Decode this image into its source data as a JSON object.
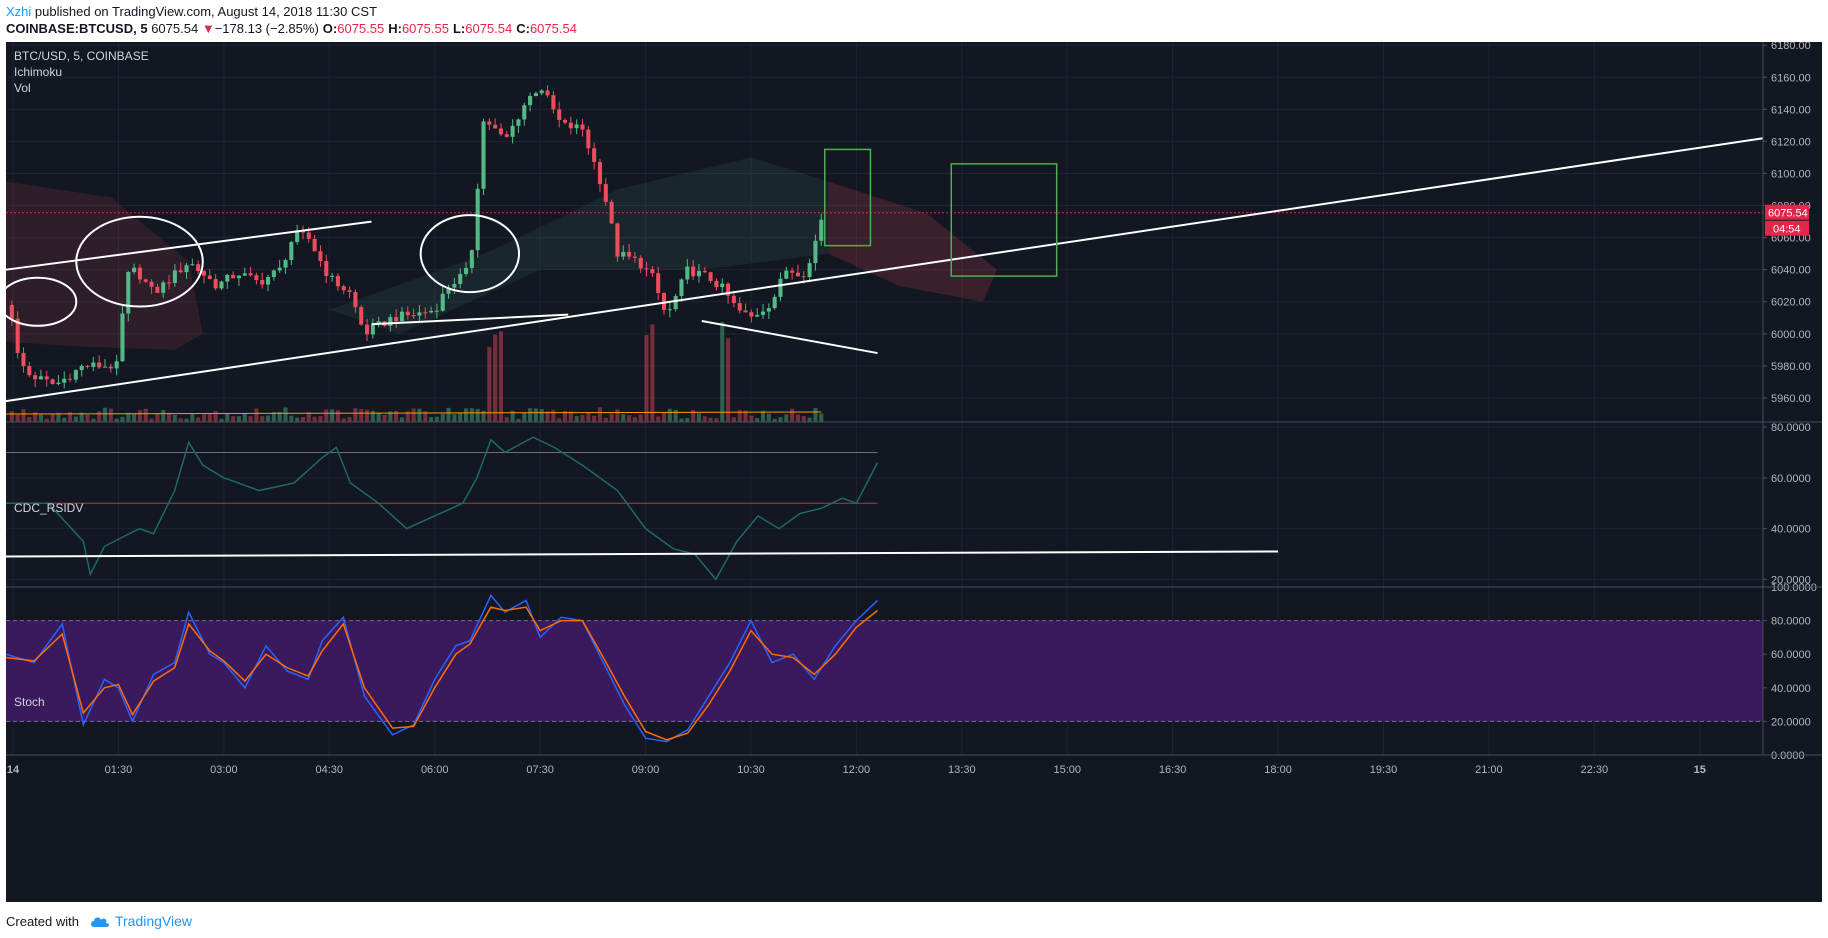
{
  "header": {
    "author": "Xzhi",
    "published_text": "published on TradingView.com, August 14, 2018 11:30 CST",
    "symbol": "COINBASE:BTCUSD, 5",
    "last_price": "6075.54",
    "change_arrow": "▼",
    "change": "−178.13 (−2.85%)",
    "o_label": "O:",
    "o_value": "6075.55",
    "h_label": "H:",
    "h_value": "6075.55",
    "l_label": "L:",
    "l_value": "6075.54",
    "c_label": "C:",
    "c_value": "6075.54"
  },
  "footer": {
    "created_with": "Created with",
    "brand": "TradingView"
  },
  "colors": {
    "background": "#131722",
    "bull": "#53b987",
    "bear": "#eb4d5c",
    "trendline": "#ffffff",
    "box": "#4caf50",
    "rsi_line": "#1d6b66",
    "stoch_k": "#2962ff",
    "stoch_d": "#ff6d00",
    "stoch_band": "#3a1a5c",
    "price_tag": "#e2274a"
  },
  "chart_data": [
    {
      "type": "candlestick",
      "panel": "price",
      "labels": [
        "BTC/USD, 5, COINBASE",
        "Ichimoku",
        "Vol"
      ],
      "ylim": [
        5945,
        6182
      ],
      "y_ticks": [
        "6180.00",
        "6160.00",
        "6140.00",
        "6120.00",
        "6100.00",
        "6080.00",
        "6060.00",
        "6040.00",
        "6020.00",
        "6000.00",
        "5980.00",
        "5960.00"
      ],
      "last_price_tag": "6075.54",
      "countdown_tag": "04:54",
      "x_ticks": [
        "14",
        "01:30",
        "03:00",
        "04:30",
        "06:00",
        "07:30",
        "09:00",
        "10:30",
        "12:00",
        "13:30",
        "15:00",
        "16:30",
        "18:00",
        "19:30",
        "21:00",
        "22:30",
        "15"
      ],
      "time_range_hours": [
        -0.1,
        24.9
      ],
      "candles_anchor_times": [
        0.0,
        1.5,
        3.0,
        4.5,
        6.0,
        7.5,
        9.0,
        10.5,
        11.5
      ],
      "candle_count": 140,
      "candle_interval_minutes": 5,
      "price_path": [
        [
          -0.1,
          6018
        ],
        [
          0.0,
          6010
        ],
        [
          0.05,
          5988
        ],
        [
          0.2,
          5975
        ],
        [
          0.6,
          5968
        ],
        [
          1.0,
          5980
        ],
        [
          1.5,
          5980
        ],
        [
          1.6,
          6035
        ],
        [
          1.75,
          6040
        ],
        [
          2.0,
          6025
        ],
        [
          2.5,
          6045
        ],
        [
          2.9,
          6030
        ],
        [
          3.2,
          6038
        ],
        [
          3.5,
          6032
        ],
        [
          3.8,
          6040
        ],
        [
          4.0,
          6062
        ],
        [
          4.2,
          6060
        ],
        [
          4.5,
          6035
        ],
        [
          4.8,
          6025
        ],
        [
          5.0,
          6000
        ],
        [
          5.4,
          6010
        ],
        [
          5.7,
          6012
        ],
        [
          6.0,
          6015
        ],
        [
          6.2,
          6030
        ],
        [
          6.5,
          6040
        ],
        [
          6.7,
          6135
        ],
        [
          7.0,
          6120
        ],
        [
          7.3,
          6145
        ],
        [
          7.5,
          6155
        ],
        [
          7.8,
          6130
        ],
        [
          8.1,
          6128
        ],
        [
          8.4,
          6090
        ],
        [
          8.6,
          6050
        ],
        [
          8.9,
          6045
        ],
        [
          9.1,
          6035
        ],
        [
          9.3,
          6010
        ],
        [
          9.6,
          6040
        ],
        [
          9.9,
          6035
        ],
        [
          10.1,
          6028
        ],
        [
          10.3,
          6015
        ],
        [
          10.5,
          6010
        ],
        [
          10.8,
          6020
        ],
        [
          11.0,
          6040
        ],
        [
          11.3,
          6038
        ],
        [
          11.5,
          6072
        ]
      ],
      "volume_spikes_hours": [
        6.8,
        6.9,
        9.05,
        10.15
      ],
      "annotations": {
        "trendlines": [
          {
            "from": [
              -0.1,
              6040
            ],
            "to": [
              5.1,
              6070
            ]
          },
          {
            "from": [
              -0.1,
              5958
            ],
            "to": [
              24.9,
              6122
            ]
          },
          {
            "from": [
              5.1,
              6006
            ],
            "to": [
              7.9,
              6012
            ]
          },
          {
            "from": [
              9.8,
              6008
            ],
            "to": [
              12.3,
              5988
            ]
          }
        ],
        "rectangles": [
          {
            "t1": [
              11.55,
              6115
            ],
            "t2": [
              12.2,
              6055
            ]
          },
          {
            "t1": [
              13.35,
              6106
            ],
            "t2": [
              14.85,
              6036
            ]
          }
        ],
        "circles": [
          {
            "center": [
              0.35,
              6020
            ],
            "r_hours": 0.55,
            "r_price": 15
          },
          {
            "center": [
              1.8,
              6045
            ],
            "r_hours": 0.9,
            "r_price": 28
          },
          {
            "center": [
              6.5,
              6050
            ],
            "r_hours": 0.7,
            "r_price": 24
          }
        ],
        "last_price_dashed": 6075.54
      }
    },
    {
      "type": "line",
      "panel": "oscillator",
      "labels": [
        "CDC_RSIDV"
      ],
      "ylim": [
        17,
        82
      ],
      "y_ticks": [
        "80.0000",
        "60.0000",
        "40.0000",
        "20.0000"
      ],
      "levels": [
        70,
        50
      ],
      "series": [
        {
          "points": [
            [
              -0.1,
              50
            ],
            [
              0.5,
              50
            ],
            [
              1.0,
              35
            ],
            [
              1.1,
              22
            ],
            [
              1.3,
              33
            ],
            [
              1.8,
              40
            ],
            [
              2.0,
              38
            ],
            [
              2.3,
              55
            ],
            [
              2.5,
              74
            ],
            [
              2.7,
              65
            ],
            [
              3.0,
              60
            ],
            [
              3.5,
              55
            ],
            [
              4.0,
              58
            ],
            [
              4.4,
              68
            ],
            [
              4.6,
              72
            ],
            [
              4.8,
              58
            ],
            [
              5.2,
              50
            ],
            [
              5.6,
              40
            ],
            [
              6.0,
              45
            ],
            [
              6.4,
              50
            ],
            [
              6.6,
              60
            ],
            [
              6.8,
              75
            ],
            [
              7.0,
              70
            ],
            [
              7.4,
              76
            ],
            [
              7.7,
              72
            ],
            [
              8.1,
              65
            ],
            [
              8.6,
              55
            ],
            [
              9.0,
              40
            ],
            [
              9.4,
              32
            ],
            [
              9.7,
              30
            ],
            [
              10.0,
              20
            ],
            [
              10.3,
              35
            ],
            [
              10.6,
              45
            ],
            [
              10.9,
              40
            ],
            [
              11.2,
              46
            ],
            [
              11.5,
              48
            ],
            [
              11.8,
              52
            ],
            [
              12.0,
              50
            ],
            [
              12.3,
              66
            ]
          ]
        }
      ],
      "trendline": {
        "from": [
          -0.1,
          29
        ],
        "to": [
          18.0,
          31
        ]
      }
    },
    {
      "type": "line",
      "panel": "oscillator",
      "labels": [
        "Stoch"
      ],
      "ylim": [
        0,
        100
      ],
      "y_ticks": [
        "100.0000",
        "80.0000",
        "60.0000",
        "40.0000",
        "20.0000",
        "0.0000"
      ],
      "band": [
        20,
        80
      ],
      "series": [
        {
          "name": "%K",
          "points": [
            [
              -0.1,
              60
            ],
            [
              0.3,
              55
            ],
            [
              0.7,
              78
            ],
            [
              1.0,
              18
            ],
            [
              1.3,
              45
            ],
            [
              1.5,
              40
            ],
            [
              1.7,
              20
            ],
            [
              2.0,
              48
            ],
            [
              2.3,
              55
            ],
            [
              2.5,
              85
            ],
            [
              2.8,
              60
            ],
            [
              3.0,
              55
            ],
            [
              3.3,
              40
            ],
            [
              3.6,
              65
            ],
            [
              3.9,
              50
            ],
            [
              4.2,
              45
            ],
            [
              4.4,
              68
            ],
            [
              4.7,
              82
            ],
            [
              5.0,
              35
            ],
            [
              5.4,
              12
            ],
            [
              5.7,
              18
            ],
            [
              6.0,
              45
            ],
            [
              6.3,
              65
            ],
            [
              6.5,
              68
            ],
            [
              6.8,
              95
            ],
            [
              7.0,
              85
            ],
            [
              7.3,
              92
            ],
            [
              7.5,
              70
            ],
            [
              7.8,
              82
            ],
            [
              8.1,
              80
            ],
            [
              8.4,
              55
            ],
            [
              8.7,
              30
            ],
            [
              9.0,
              10
            ],
            [
              9.3,
              8
            ],
            [
              9.6,
              15
            ],
            [
              9.9,
              35
            ],
            [
              10.2,
              55
            ],
            [
              10.5,
              80
            ],
            [
              10.8,
              55
            ],
            [
              11.1,
              60
            ],
            [
              11.4,
              45
            ],
            [
              11.7,
              65
            ],
            [
              12.0,
              80
            ],
            [
              12.3,
              92
            ]
          ]
        },
        {
          "name": "%D",
          "points": [
            [
              -0.1,
              58
            ],
            [
              0.3,
              56
            ],
            [
              0.7,
              72
            ],
            [
              1.0,
              25
            ],
            [
              1.3,
              40
            ],
            [
              1.5,
              42
            ],
            [
              1.7,
              24
            ],
            [
              2.0,
              44
            ],
            [
              2.3,
              52
            ],
            [
              2.5,
              78
            ],
            [
              2.8,
              62
            ],
            [
              3.0,
              56
            ],
            [
              3.3,
              44
            ],
            [
              3.6,
              60
            ],
            [
              3.9,
              52
            ],
            [
              4.2,
              47
            ],
            [
              4.4,
              62
            ],
            [
              4.7,
              78
            ],
            [
              5.0,
              40
            ],
            [
              5.4,
              16
            ],
            [
              5.7,
              17
            ],
            [
              6.0,
              40
            ],
            [
              6.3,
              60
            ],
            [
              6.5,
              66
            ],
            [
              6.8,
              88
            ],
            [
              7.0,
              86
            ],
            [
              7.3,
              88
            ],
            [
              7.5,
              74
            ],
            [
              7.8,
              80
            ],
            [
              8.1,
              80
            ],
            [
              8.4,
              58
            ],
            [
              8.7,
              35
            ],
            [
              9.0,
              14
            ],
            [
              9.3,
              9
            ],
            [
              9.6,
              13
            ],
            [
              9.9,
              30
            ],
            [
              10.2,
              50
            ],
            [
              10.5,
              74
            ],
            [
              10.8,
              60
            ],
            [
              11.1,
              58
            ],
            [
              11.4,
              48
            ],
            [
              11.7,
              60
            ],
            [
              12.0,
              76
            ],
            [
              12.3,
              86
            ]
          ]
        }
      ]
    }
  ]
}
